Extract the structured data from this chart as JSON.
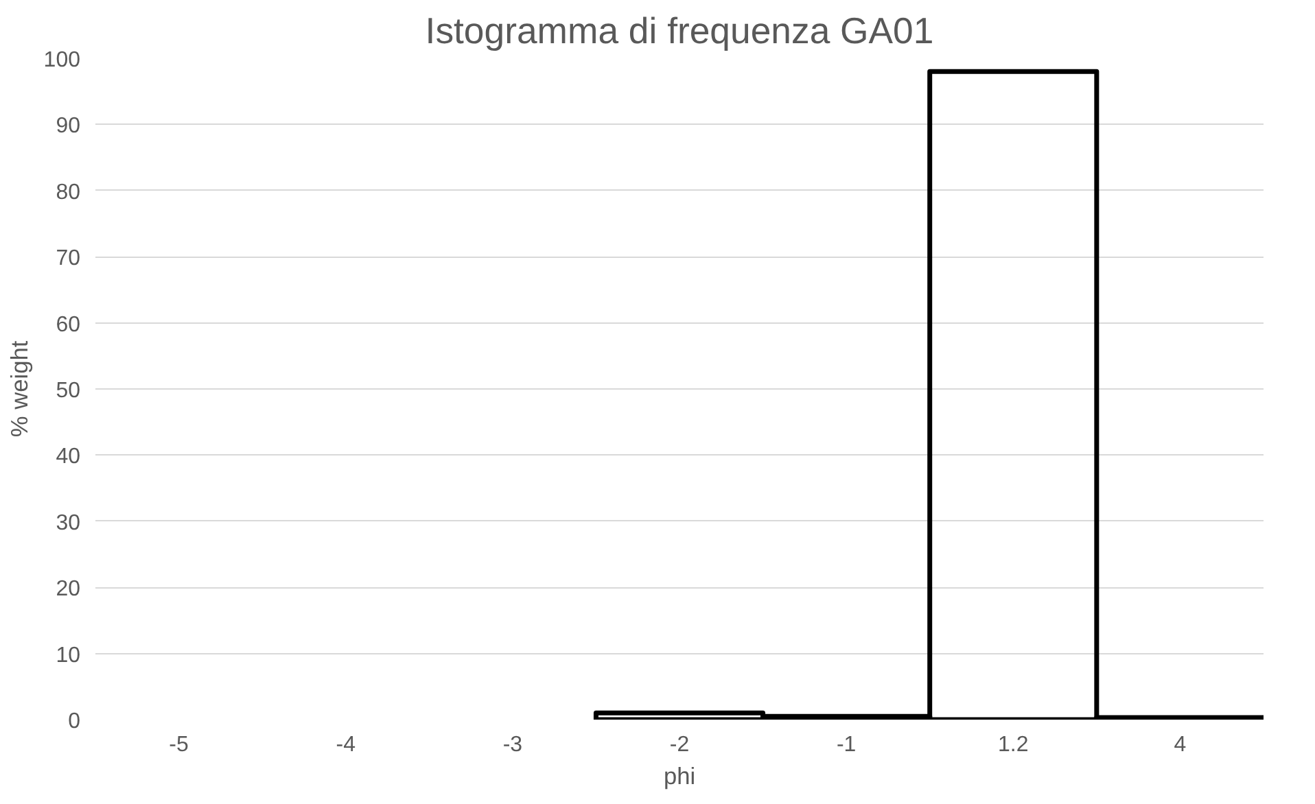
{
  "chart_data": {
    "type": "bar",
    "title": "Istogramma di frequenza GA01",
    "xlabel": "phi",
    "ylabel": "% weight",
    "categories": [
      "-5",
      "-4",
      "-3",
      "-2",
      "-1",
      "1.2",
      "4"
    ],
    "series": [
      {
        "color": "#000000",
        "values": [
          null,
          null,
          null,
          1,
          0.5,
          98,
          0.3
        ]
      }
    ],
    "ylim": [
      0,
      100
    ],
    "yticks": [
      0,
      10,
      20,
      30,
      40,
      50,
      60,
      70,
      80,
      90,
      100
    ],
    "grid": "y"
  }
}
